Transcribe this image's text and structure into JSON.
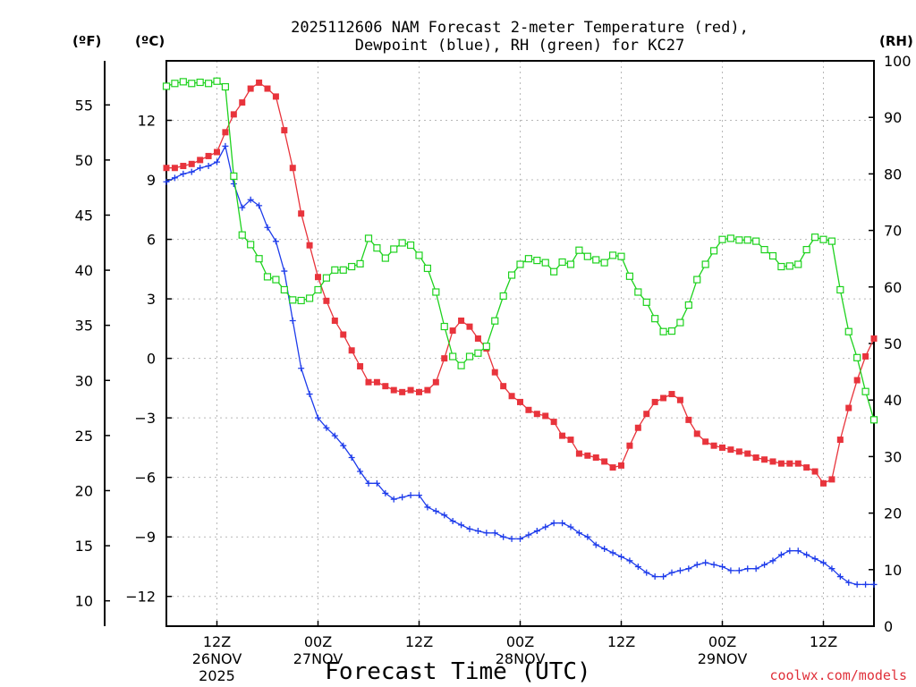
{
  "chart_data": {
    "type": "line",
    "title_line1": "2025112606 NAM Forecast 2-meter Temperature (red),",
    "title_line2": "Dewpoint (blue), RH (green) for KC27",
    "unit_f": "(ºF)",
    "unit_c": "(ºC)",
    "unit_rh": "(RH)",
    "xlabel": "Forecast Time (UTC)",
    "credit": "coolwx.com/models",
    "x_range_hours": [
      0,
      84
    ],
    "x_ticks": [
      {
        "h": 6,
        "time": "12Z",
        "date": "26NOV",
        "year": "2025"
      },
      {
        "h": 18,
        "time": "00Z",
        "date": "27NOV",
        "year": ""
      },
      {
        "h": 30,
        "time": "12Z",
        "date": "",
        "year": ""
      },
      {
        "h": 42,
        "time": "00Z",
        "date": "28NOV",
        "year": ""
      },
      {
        "h": 54,
        "time": "12Z",
        "date": "",
        "year": ""
      },
      {
        "h": 66,
        "time": "00Z",
        "date": "29NOV",
        "year": ""
      },
      {
        "h": 78,
        "time": "12Z",
        "date": "",
        "year": ""
      }
    ],
    "c_axis": {
      "range": [
        -13.5,
        15
      ],
      "ticks": [
        "12",
        "9",
        "6",
        "3",
        "0",
        "−3",
        "−6",
        "−9",
        "−12"
      ],
      "tick_values": [
        12,
        9,
        6,
        3,
        0,
        -3,
        -6,
        -9,
        -12
      ]
    },
    "f_axis": {
      "ticks": [
        "55",
        "50",
        "45",
        "40",
        "35",
        "30",
        "25",
        "20",
        "15",
        "10"
      ],
      "tick_values": [
        55,
        50,
        45,
        40,
        35,
        30,
        25,
        20,
        15,
        10
      ]
    },
    "rh_axis": {
      "range": [
        0,
        100
      ],
      "ticks": [
        "100",
        "90",
        "80",
        "70",
        "60",
        "50",
        "40",
        "30",
        "20",
        "10",
        "0"
      ],
      "tick_values": [
        100,
        90,
        80,
        70,
        60,
        50,
        40,
        30,
        20,
        10,
        0
      ]
    },
    "series": [
      {
        "name": "2-meter Temperature",
        "units": "degC",
        "color": "#e8343c",
        "marker": "square-filled",
        "x": [
          0,
          1,
          2,
          3,
          4,
          5,
          6,
          7,
          8,
          9,
          10,
          11,
          12,
          13,
          14,
          15,
          16,
          17,
          18,
          19,
          20,
          21,
          22,
          23,
          24,
          25,
          26,
          27,
          28,
          29,
          30,
          31,
          32,
          33,
          34,
          35,
          36,
          37,
          38,
          39,
          40,
          41,
          42,
          43,
          44,
          45,
          46,
          47,
          48,
          49,
          50,
          51,
          52,
          53,
          54,
          55,
          56,
          57,
          58,
          59,
          60,
          61,
          62,
          63,
          64,
          65,
          66,
          67,
          68,
          69,
          70,
          71,
          72,
          73,
          74,
          75,
          76,
          77,
          78,
          79,
          80,
          81,
          82,
          83,
          84
        ],
        "values": [
          9.6,
          9.6,
          9.7,
          9.8,
          10.0,
          10.2,
          10.4,
          11.4,
          12.3,
          12.9,
          13.6,
          13.9,
          13.6,
          13.2,
          11.5,
          9.6,
          7.3,
          5.7,
          4.1,
          2.9,
          1.9,
          1.2,
          0.4,
          -0.4,
          -1.2,
          -1.2,
          -1.4,
          -1.6,
          -1.7,
          -1.6,
          -1.7,
          -1.6,
          -1.2,
          0.0,
          1.4,
          1.9,
          1.6,
          1.0,
          0.5,
          -0.7,
          -1.4,
          -1.9,
          -2.2,
          -2.6,
          -2.8,
          -2.9,
          -3.2,
          -3.9,
          -4.1,
          -4.8,
          -4.9,
          -5.0,
          -5.2,
          -5.5,
          -5.4,
          -4.4,
          -3.5,
          -2.8,
          -2.2,
          -2.0,
          -1.8,
          -2.1,
          -3.1,
          -3.8,
          -4.2,
          -4.4,
          -4.5,
          -4.6,
          -4.7,
          -4.8,
          -5.0,
          -5.1,
          -5.2,
          -5.3,
          -5.3,
          -5.3,
          -5.5,
          -5.7,
          -6.3,
          -6.1,
          -4.1,
          -2.5,
          -1.1,
          0.1,
          1.0
        ]
      },
      {
        "name": "Dewpoint",
        "units": "degC",
        "color": "#1e3ceb",
        "marker": "plus",
        "x": [
          0,
          1,
          2,
          3,
          4,
          5,
          6,
          7,
          8,
          9,
          10,
          11,
          12,
          13,
          14,
          15,
          16,
          17,
          18,
          19,
          20,
          21,
          22,
          23,
          24,
          25,
          26,
          27,
          28,
          29,
          30,
          31,
          32,
          33,
          34,
          35,
          36,
          37,
          38,
          39,
          40,
          41,
          42,
          43,
          44,
          45,
          46,
          47,
          48,
          49,
          50,
          51,
          52,
          53,
          54,
          55,
          56,
          57,
          58,
          59,
          60,
          61,
          62,
          63,
          64,
          65,
          66,
          67,
          68,
          69,
          70,
          71,
          72,
          73,
          74,
          75,
          76,
          77,
          78,
          79,
          80,
          81,
          82,
          83,
          84
        ],
        "values": [
          8.9,
          9.1,
          9.3,
          9.4,
          9.6,
          9.7,
          9.9,
          10.7,
          8.8,
          7.6,
          8.0,
          7.7,
          6.6,
          5.9,
          4.4,
          1.9,
          -0.5,
          -1.8,
          -3.0,
          -3.5,
          -3.9,
          -4.4,
          -5.0,
          -5.7,
          -6.3,
          -6.3,
          -6.8,
          -7.1,
          -7.0,
          -6.9,
          -6.9,
          -7.5,
          -7.7,
          -7.9,
          -8.2,
          -8.4,
          -8.6,
          -8.7,
          -8.8,
          -8.8,
          -9.0,
          -9.1,
          -9.1,
          -8.9,
          -8.7,
          -8.5,
          -8.3,
          -8.3,
          -8.5,
          -8.8,
          -9.0,
          -9.4,
          -9.6,
          -9.8,
          -10.0,
          -10.2,
          -10.5,
          -10.8,
          -11.0,
          -11.0,
          -10.8,
          -10.7,
          -10.6,
          -10.4,
          -10.3,
          -10.4,
          -10.5,
          -10.7,
          -10.7,
          -10.6,
          -10.6,
          -10.4,
          -10.2,
          -9.9,
          -9.7,
          -9.7,
          -9.9,
          -10.1,
          -10.3,
          -10.6,
          -11.0,
          -11.3,
          -11.4,
          -11.4,
          -11.4
        ]
      },
      {
        "name": "RH",
        "units": "percent",
        "color": "#1ed21e",
        "marker": "square-open",
        "x": [
          0,
          1,
          2,
          3,
          4,
          5,
          6,
          7,
          8,
          9,
          10,
          11,
          12,
          13,
          14,
          15,
          16,
          17,
          18,
          19,
          20,
          21,
          22,
          23,
          24,
          25,
          26,
          27,
          28,
          29,
          30,
          31,
          32,
          33,
          34,
          35,
          36,
          37,
          38,
          39,
          40,
          41,
          42,
          43,
          44,
          45,
          46,
          47,
          48,
          49,
          50,
          51,
          52,
          53,
          54,
          55,
          56,
          57,
          58,
          59,
          60,
          61,
          62,
          63,
          64,
          65,
          66,
          67,
          68,
          69,
          70,
          71,
          72,
          73,
          74,
          75,
          76,
          77,
          78,
          79,
          80,
          81,
          82,
          83,
          84
        ],
        "values": [
          95.5,
          96,
          96.3,
          96,
          96.2,
          96,
          96.4,
          95.4,
          79.6,
          69.2,
          67.5,
          65,
          61.8,
          61.3,
          59.5,
          57.7,
          57.6,
          58,
          59.5,
          61.6,
          63,
          63,
          63.6,
          64.1,
          68.6,
          66.9,
          65.1,
          66.7,
          67.8,
          67.4,
          65.6,
          63.3,
          59.1,
          53,
          47.7,
          46.1,
          47.7,
          48.3,
          49.5,
          54,
          58.4,
          62.1,
          64,
          65,
          64.7,
          64.3,
          62.7,
          64.4,
          64,
          66.5,
          65.4,
          64.8,
          64.3,
          65.6,
          65.4,
          61.9,
          59.1,
          57.3,
          54.4,
          52.1,
          52.2,
          53.7,
          56.8,
          61.3,
          64,
          66.4,
          68.4,
          68.6,
          68.3,
          68.3,
          68.1,
          66.6,
          65.5,
          63.6,
          63.7,
          64,
          66.6,
          68.8,
          68.4,
          68.1,
          59.5,
          52.1,
          47.5,
          41.5,
          36.5
        ]
      }
    ]
  }
}
